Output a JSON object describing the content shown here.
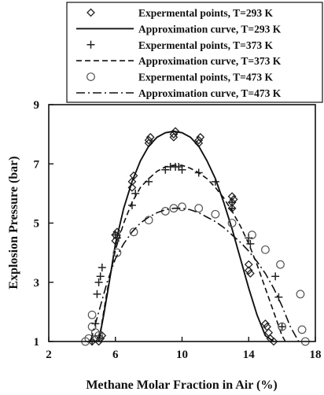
{
  "chart_data": {
    "type": "scatter",
    "title": "",
    "xlabel": "Methane Molar Fraction in Air (%)",
    "ylabel": "Explosion Pressure (bar)",
    "xlim": [
      2,
      18
    ],
    "ylim": [
      1,
      9
    ],
    "xticks": [
      "2",
      "6",
      "10",
      "14",
      "18"
    ],
    "yticks": [
      "1",
      "3",
      "5",
      "7",
      "9"
    ],
    "grid": false,
    "legend_position": "top-right",
    "series": [
      {
        "name": "Expermental points, T=293 K",
        "kind": "points",
        "marker": "diamond",
        "x": [
          4.6,
          4.8,
          5.0,
          5.1,
          5.2,
          6.0,
          6.0,
          6.1,
          7.0,
          7.1,
          7.0,
          8.0,
          8.0,
          8.1,
          9.5,
          9.5,
          9.6,
          11.0,
          11.0,
          11.1,
          13.0,
          13.0,
          13.1,
          13.0,
          14.0,
          14.0,
          14.1,
          15.0,
          15.1,
          15.2,
          15.3,
          15.5
        ],
        "y": [
          1.0,
          1.1,
          1.0,
          1.1,
          1.2,
          4.6,
          4.4,
          4.7,
          6.4,
          6.6,
          6.2,
          7.7,
          7.8,
          7.9,
          7.9,
          8.0,
          8.1,
          7.7,
          7.8,
          7.9,
          5.5,
          5.7,
          5.8,
          5.9,
          3.6,
          3.4,
          3.3,
          1.6,
          1.5,
          1.3,
          1.1,
          1.0
        ]
      },
      {
        "name": "Approximation curve, T=293 K",
        "kind": "line",
        "dash": "solid",
        "x": [
          5.0,
          5.3,
          5.6,
          6.0,
          6.5,
          7.0,
          7.5,
          8.0,
          8.5,
          9.0,
          9.5,
          10.0,
          10.5,
          11.0,
          11.5,
          12.0,
          12.5,
          13.0,
          13.5,
          14.0,
          14.5,
          15.0,
          15.5
        ],
        "y": [
          1.0,
          1.9,
          2.9,
          4.3,
          5.5,
          6.4,
          7.1,
          7.6,
          7.9,
          8.05,
          8.1,
          8.05,
          7.9,
          7.6,
          7.1,
          6.5,
          5.7,
          4.8,
          3.8,
          2.8,
          1.9,
          1.2,
          1.0
        ]
      },
      {
        "name": "Expermental points, T=373 K",
        "kind": "points",
        "marker": "plus",
        "x": [
          4.6,
          4.8,
          4.9,
          5.0,
          5.1,
          5.2,
          6.0,
          6.1,
          7.0,
          7.2,
          8.0,
          9.0,
          9.3,
          9.6,
          9.8,
          10.0,
          11.0,
          12.0,
          13.0,
          13.0,
          14.0,
          14.1,
          15.6,
          15.8,
          16.0
        ],
        "y": [
          1.0,
          1.6,
          2.6,
          3.0,
          3.2,
          3.5,
          4.6,
          4.5,
          5.6,
          6.0,
          6.4,
          6.8,
          6.9,
          6.9,
          6.9,
          6.8,
          6.7,
          6.4,
          5.7,
          5.5,
          4.5,
          4.3,
          3.2,
          2.5,
          1.5
        ]
      },
      {
        "name": "Approximation curve, T=373 K",
        "kind": "line",
        "dash": "dashed",
        "x": [
          5.0,
          5.5,
          6.0,
          6.5,
          7.0,
          7.5,
          8.0,
          8.5,
          9.0,
          9.5,
          10.0,
          10.5,
          11.0,
          11.5,
          12.0,
          12.5,
          13.0,
          13.5,
          14.0,
          14.5,
          15.0,
          15.5,
          16.0,
          16.2
        ],
        "y": [
          1.0,
          2.7,
          4.1,
          5.0,
          5.7,
          6.2,
          6.5,
          6.75,
          6.9,
          6.95,
          6.95,
          6.85,
          6.7,
          6.5,
          6.2,
          5.85,
          5.4,
          4.9,
          4.3,
          3.6,
          2.8,
          2.0,
          1.2,
          1.0
        ]
      },
      {
        "name": "Expermental points, T=473 K",
        "kind": "points",
        "marker": "circle",
        "x": [
          4.2,
          4.4,
          4.6,
          4.6,
          4.8,
          5.0,
          6.1,
          7.1,
          8.0,
          9.0,
          9.5,
          10.0,
          11.0,
          12.0,
          13.0,
          14.2,
          15.0,
          15.9,
          16.0,
          17.1,
          17.2,
          17.4
        ],
        "y": [
          1.0,
          1.1,
          1.9,
          1.5,
          1.3,
          1.2,
          4.0,
          4.7,
          5.1,
          5.4,
          5.5,
          5.55,
          5.5,
          5.3,
          5.0,
          4.6,
          4.1,
          3.6,
          1.5,
          2.6,
          1.4,
          1.0
        ]
      },
      {
        "name": "Approximation curve, T=473 K",
        "kind": "line",
        "dash": "dashdot",
        "x": [
          4.5,
          5.0,
          5.5,
          6.0,
          6.5,
          7.0,
          7.5,
          8.0,
          8.5,
          9.0,
          9.5,
          10.0,
          10.5,
          11.0,
          11.5,
          12.0,
          12.5,
          13.0,
          13.5,
          14.0,
          14.5,
          15.0,
          15.5,
          16.0,
          16.5,
          17.0
        ],
        "y": [
          1.0,
          2.0,
          3.0,
          3.8,
          4.3,
          4.7,
          5.0,
          5.2,
          5.35,
          5.45,
          5.5,
          5.5,
          5.45,
          5.35,
          5.2,
          5.05,
          4.85,
          4.6,
          4.35,
          4.05,
          3.7,
          3.3,
          2.8,
          2.2,
          1.5,
          1.0
        ]
      }
    ]
  }
}
